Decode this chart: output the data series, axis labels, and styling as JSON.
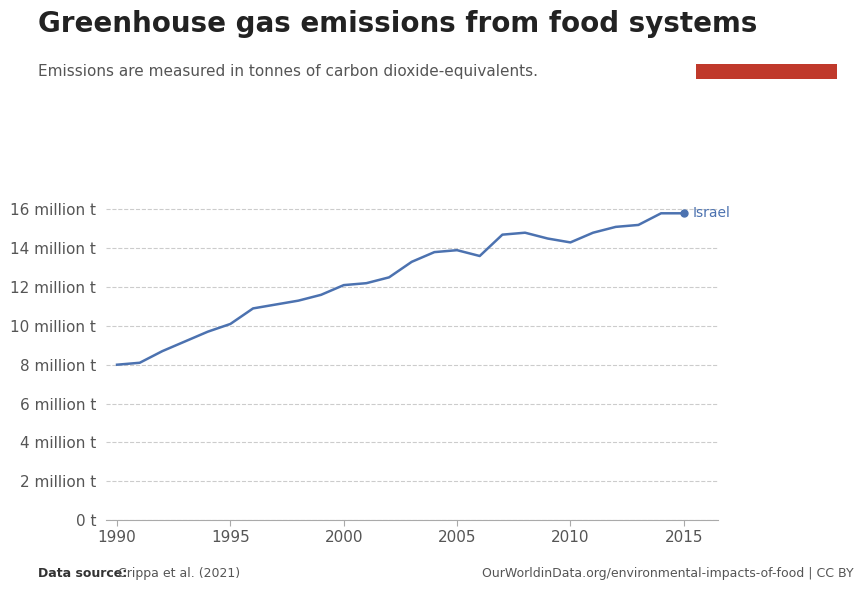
{
  "title": "Greenhouse gas emissions from food systems",
  "subtitle": "Emissions are measured in tonnes of carbon dioxide-equivalents.",
  "data_source_label": "Data source:",
  "data_source": "Crippa et al. (2021)",
  "url": "OurWorldinData.org/environmental-impacts-of-food | CC BY",
  "series_label": "Israel",
  "line_color": "#4C72B0",
  "background_color": "#ffffff",
  "years": [
    1990,
    1991,
    1992,
    1993,
    1994,
    1995,
    1996,
    1997,
    1998,
    1999,
    2000,
    2001,
    2002,
    2003,
    2004,
    2005,
    2006,
    2007,
    2008,
    2009,
    2010,
    2011,
    2012,
    2013,
    2014,
    2015
  ],
  "values": [
    8.0,
    8.1,
    8.7,
    9.2,
    9.7,
    10.1,
    10.9,
    11.1,
    11.3,
    11.6,
    12.1,
    12.2,
    12.5,
    13.3,
    13.8,
    13.9,
    13.6,
    14.7,
    14.8,
    14.5,
    14.3,
    14.8,
    15.1,
    15.2,
    15.8,
    15.8
  ],
  "ylim": [
    0,
    17
  ],
  "ytick_values": [
    0,
    2,
    4,
    6,
    8,
    10,
    12,
    14,
    16
  ],
  "ytick_labels": [
    "0 t",
    "2 million t",
    "4 million t",
    "6 million t",
    "8 million t",
    "10 million t",
    "12 million t",
    "14 million t",
    "16 million t"
  ],
  "xlim": [
    1989.5,
    2016.5
  ],
  "xtick_values": [
    1990,
    1995,
    2000,
    2005,
    2010,
    2015
  ],
  "grid_color": "#cccccc",
  "title_fontsize": 20,
  "subtitle_fontsize": 11,
  "tick_fontsize": 11,
  "owid_box_color": "#1a3a5c",
  "owid_red": "#c0392b"
}
